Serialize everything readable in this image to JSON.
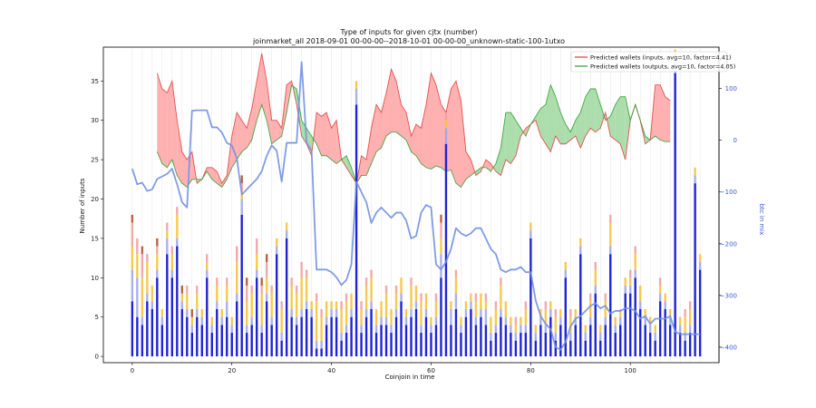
{
  "chart_data": {
    "type": "bar",
    "title": "Type of inputs for given cjtx (number)",
    "subtitle": "joinmarket_all 2018-09-01 00-00-00--2018-10-01 00-00-00_unknown-static-100-1utxo",
    "xlabel": "Coinjoin in time",
    "ylabel": "Number of inputs",
    "ylabel_right": "btc in mix",
    "xlim": [
      -5.8,
      117.8
    ],
    "ylim": [
      -0.8,
      39.3
    ],
    "ylim_right": [
      -430,
      180
    ],
    "xticks": [
      0,
      20,
      40,
      60,
      80,
      100
    ],
    "yticks": [
      0,
      5,
      10,
      15,
      20,
      25,
      30,
      35
    ],
    "yticks_right": [
      -400,
      -300,
      -200,
      -100,
      0,
      100
    ],
    "grid": "vertical lines only",
    "legend_position": "top-right",
    "colors": {
      "bar_base": "#1f24d6",
      "bar_light_blue": "#9aa2ee",
      "bar_yellow": "#f7c33b",
      "bar_pink": "#f2a0a0",
      "bar_brown": "#b5532e",
      "fill_inputs": "#ff9d9d",
      "fill_outputs": "#97d497",
      "line_inputs": "#e23a3a",
      "line_outputs": "#2b9b2b",
      "line_btc": "#7391e2",
      "grid": "#dddddd"
    },
    "bars": {
      "x": [
        0,
        1,
        2,
        3,
        4,
        5,
        6,
        7,
        8,
        9,
        10,
        11,
        12,
        13,
        14,
        15,
        16,
        17,
        18,
        19,
        20,
        21,
        22,
        23,
        24,
        25,
        26,
        27,
        28,
        29,
        30,
        31,
        32,
        33,
        34,
        35,
        36,
        37,
        38,
        39,
        40,
        41,
        42,
        43,
        44,
        45,
        46,
        47,
        48,
        49,
        50,
        51,
        52,
        53,
        54,
        55,
        56,
        57,
        58,
        59,
        60,
        61,
        62,
        63,
        64,
        65,
        66,
        67,
        68,
        69,
        70,
        71,
        72,
        73,
        74,
        75,
        76,
        77,
        78,
        79,
        80,
        81,
        82,
        83,
        84,
        85,
        86,
        87,
        88,
        89,
        90,
        91,
        92,
        93,
        94,
        95,
        96,
        97,
        98,
        99,
        100,
        101,
        102,
        103,
        104,
        105,
        106,
        107,
        108,
        109,
        110,
        111,
        112,
        113,
        114
      ],
      "base": [
        7,
        5,
        4,
        7,
        6,
        10,
        4,
        13,
        10,
        14,
        6,
        5,
        3,
        5,
        4,
        10,
        3,
        6,
        4,
        5,
        3,
        7,
        18,
        3,
        4,
        10,
        3,
        7,
        4,
        13,
        2,
        15,
        5,
        4,
        5,
        6,
        5,
        1,
        1,
        4,
        5,
        5,
        2,
        3,
        5,
        32,
        3,
        5,
        6,
        3,
        4,
        4,
        3,
        5,
        7,
        4,
        5,
        6,
        3,
        5,
        3,
        4,
        10,
        27,
        4,
        6,
        3,
        5,
        6,
        4,
        5,
        4,
        2,
        3,
        5,
        4,
        3,
        2,
        3,
        3,
        15,
        2,
        4,
        3,
        5,
        2,
        4,
        10,
        2,
        4,
        13,
        2,
        4,
        8,
        2,
        4,
        13,
        3,
        4,
        8,
        8,
        10,
        6,
        4,
        3,
        2,
        7,
        6,
        4,
        36,
        3,
        2,
        3,
        22,
        11
      ],
      "light_blue": [
        4,
        5,
        1,
        1,
        1,
        1,
        1,
        2,
        1,
        1,
        1,
        1,
        1,
        1,
        1,
        1,
        1,
        1,
        1,
        2,
        1,
        1,
        2,
        1,
        1,
        1,
        1,
        1,
        1,
        1,
        1,
        1,
        1,
        1,
        1,
        1,
        1,
        1,
        1,
        1,
        1,
        1,
        1,
        1,
        1,
        2,
        1,
        1,
        1,
        1,
        1,
        1,
        1,
        1,
        1,
        1,
        1,
        1,
        1,
        1,
        1,
        1,
        3,
        2,
        2,
        2,
        1,
        1,
        1,
        1,
        1,
        2,
        1,
        1,
        1,
        1,
        1,
        1,
        1,
        1,
        1,
        1,
        1,
        1,
        1,
        1,
        1,
        1,
        1,
        1,
        1,
        1,
        1,
        1,
        1,
        1,
        1,
        1,
        1,
        1,
        1,
        1,
        1,
        1,
        1,
        1,
        1,
        1,
        1,
        2,
        1,
        1,
        1,
        1,
        1
      ],
      "yellow": [
        3,
        3,
        5,
        4,
        2,
        2,
        1,
        1,
        2,
        3,
        1,
        2,
        1,
        2,
        1,
        1,
        1,
        2,
        1,
        2,
        1,
        4,
        1,
        3,
        3,
        2,
        4,
        2,
        3,
        1,
        3,
        1,
        3,
        3,
        4,
        3,
        1,
        5,
        3,
        2,
        1,
        1,
        3,
        3,
        2,
        1,
        2,
        3,
        3,
        2,
        2,
        3,
        2,
        2,
        2,
        1,
        3,
        2,
        3,
        2,
        1,
        2,
        2,
        1,
        1,
        2,
        1,
        1,
        1,
        2,
        2,
        1,
        2,
        2,
        3,
        2,
        1,
        1,
        1,
        2,
        1,
        1,
        1,
        2,
        1,
        2,
        1,
        1,
        2,
        1,
        1,
        1,
        2,
        2,
        1,
        2,
        3,
        1,
        1,
        1,
        1,
        2,
        2,
        1,
        1,
        1,
        1,
        1,
        1,
        1,
        1,
        2,
        2,
        1,
        1
      ],
      "pink": [
        3,
        2,
        3,
        1,
        0,
        1,
        0,
        1,
        1,
        1,
        0,
        1,
        0,
        1,
        0,
        1,
        0,
        1,
        0,
        1,
        0,
        2,
        1,
        2,
        1,
        2,
        1,
        2,
        1,
        0,
        1,
        0,
        1,
        1,
        2,
        1,
        0,
        1,
        1,
        0,
        0,
        0,
        1,
        1,
        0,
        0,
        1,
        1,
        1,
        0,
        0,
        1,
        0,
        1,
        0,
        0,
        1,
        0,
        1,
        0,
        0,
        1,
        2,
        1,
        0,
        1,
        0,
        0,
        0,
        1,
        0,
        1,
        0,
        1,
        1,
        0,
        0,
        1,
        0,
        1,
        0,
        0,
        0,
        1,
        0,
        1,
        0,
        0,
        1,
        0,
        0,
        0,
        1,
        1,
        0,
        1,
        1,
        0,
        0,
        0,
        1,
        1,
        0,
        0,
        0,
        0,
        1,
        0,
        0,
        0,
        0,
        1,
        1,
        0,
        0
      ],
      "brown": [
        1,
        0,
        1,
        0,
        0,
        1,
        0,
        0,
        0,
        0,
        1,
        0,
        1,
        0,
        0,
        0,
        0,
        0,
        0,
        0,
        0,
        0,
        1,
        1,
        0,
        0,
        1,
        1,
        0,
        0,
        0,
        0,
        0,
        0,
        0,
        0,
        0,
        0,
        0,
        0,
        0,
        0,
        0,
        0,
        0,
        0,
        0,
        0,
        0,
        0,
        0,
        0,
        0,
        0,
        0,
        0,
        0,
        0,
        0,
        0,
        0,
        0,
        1,
        0,
        0,
        0,
        0,
        0,
        0,
        0,
        0,
        0,
        0,
        0,
        0,
        0,
        0,
        0,
        0,
        0,
        0,
        0,
        0,
        0,
        0,
        0,
        0,
        0,
        0,
        0,
        0,
        0,
        0,
        0,
        0,
        0,
        0,
        0,
        0,
        0,
        0,
        0,
        0,
        0,
        0,
        0,
        0,
        0,
        0,
        0,
        0,
        0,
        0,
        0,
        0
      ]
    },
    "wallet_bands": {
      "x": [
        5,
        6,
        7,
        8,
        9,
        10,
        11,
        12,
        13,
        14,
        15,
        16,
        17,
        18,
        19,
        20,
        21,
        22,
        23,
        24,
        25,
        26,
        27,
        28,
        29,
        30,
        31,
        32,
        33,
        34,
        35,
        36,
        37,
        38,
        39,
        40,
        41,
        42,
        43,
        44,
        45,
        46,
        47,
        48,
        49,
        50,
        51,
        52,
        53,
        54,
        55,
        56,
        57,
        58,
        59,
        60,
        61,
        62,
        63,
        64,
        65,
        66,
        67,
        68,
        69,
        70,
        71,
        72,
        73,
        74,
        75,
        76,
        77,
        78,
        79,
        80,
        81,
        82,
        83,
        84,
        85,
        86,
        87,
        88,
        89,
        90,
        91,
        92,
        93,
        94,
        95,
        96,
        97,
        98,
        99,
        100,
        101,
        102,
        103,
        104,
        105,
        106,
        107,
        108
      ],
      "inputs": [
        36,
        34,
        33.5,
        35,
        30,
        26,
        25,
        26,
        22,
        22.5,
        24,
        24,
        23.5,
        22,
        23,
        28,
        31,
        30,
        29,
        31.5,
        35,
        38.5,
        35,
        30,
        30,
        29,
        34.5,
        35,
        32,
        28,
        27,
        25.5,
        31,
        30.5,
        31,
        29,
        30,
        25,
        24,
        23,
        22,
        25.5,
        25,
        29,
        32,
        31,
        33.5,
        36.5,
        35,
        32,
        31,
        28,
        29.5,
        29,
        32,
        36,
        34.5,
        32,
        31,
        34,
        35,
        32.5,
        26,
        25,
        23,
        23.5,
        25,
        24.5,
        23.5,
        23,
        25,
        24.5,
        25.5,
        28,
        29,
        29.5,
        30,
        28,
        27,
        26,
        28,
        27,
        27,
        27.5,
        28,
        26.5,
        28,
        29,
        28.5,
        29,
        31,
        28,
        27.5,
        27,
        25,
        30,
        32,
        30,
        27,
        27.5,
        34.5,
        34.5,
        33,
        32.5
      ],
      "outputs": [
        26,
        24.5,
        24,
        25,
        23,
        22,
        21.5,
        22.5,
        22.5,
        22.5,
        23.5,
        22.5,
        22,
        21.5,
        22.5,
        24,
        25,
        26,
        26.5,
        27.5,
        30,
        32,
        30,
        27,
        27.5,
        28,
        31,
        34.5,
        34,
        30,
        29,
        28,
        27,
        25.5,
        25.5,
        25,
        24.5,
        25,
        25.5,
        24,
        22,
        23,
        23,
        24.5,
        26,
        26.5,
        28,
        28.5,
        28.5,
        28,
        27.5,
        26,
        25.5,
        24.5,
        24,
        23.8,
        24.2,
        24,
        23.5,
        23.7,
        22,
        21.5,
        22.5,
        23,
        23.5,
        24,
        24,
        23.5,
        24.5,
        26.5,
        31,
        31,
        30,
        29,
        28,
        29.5,
        30.5,
        31.5,
        32,
        34.5,
        33,
        31,
        29.5,
        28.5,
        30,
        31,
        33,
        34,
        34,
        32,
        30,
        30.5,
        32,
        33,
        33,
        30,
        32,
        30,
        28,
        27.5,
        28,
        27.5,
        27.3,
        27.3
      ]
    },
    "btc_in_mix": {
      "x": [
        0,
        1,
        2,
        3,
        4,
        5,
        6,
        7,
        8,
        9,
        10,
        11,
        12,
        13,
        14,
        15,
        16,
        17,
        18,
        19,
        20,
        21,
        22,
        23,
        24,
        25,
        26,
        27,
        28,
        29,
        30,
        31,
        32,
        33,
        34,
        35,
        36,
        37,
        38,
        39,
        40,
        41,
        42,
        43,
        44,
        45,
        46,
        47,
        48,
        49,
        50,
        51,
        52,
        53,
        54,
        55,
        56,
        57,
        58,
        59,
        60,
        61,
        62,
        63,
        64,
        65,
        66,
        67,
        68,
        69,
        70,
        71,
        72,
        73,
        74,
        75,
        76,
        77,
        78,
        79,
        80,
        81,
        82,
        83,
        84,
        85,
        86,
        87,
        88,
        89,
        90,
        91,
        92,
        93,
        94,
        95,
        96,
        97,
        98,
        99,
        100,
        101,
        102,
        103,
        104,
        105,
        106,
        107,
        108,
        109,
        110,
        111,
        112,
        113,
        114
      ],
      "values": [
        -55,
        -85,
        -82,
        -98,
        -95,
        -75,
        -70,
        -65,
        -55,
        -85,
        -120,
        -130,
        57,
        58,
        58,
        58,
        25,
        25,
        15,
        -5,
        -10,
        -35,
        -105,
        -95,
        -85,
        -75,
        -60,
        -30,
        -10,
        -20,
        -80,
        -5,
        -5,
        -5,
        151,
        -5,
        -20,
        -250,
        -250,
        -250,
        -255,
        -265,
        -280,
        -270,
        -240,
        -80,
        -100,
        -120,
        -160,
        -140,
        -130,
        -140,
        -150,
        -140,
        -140,
        -155,
        -190,
        -185,
        -140,
        -125,
        -130,
        -240,
        -250,
        -235,
        -210,
        -170,
        -180,
        -185,
        -180,
        -170,
        -170,
        -190,
        -210,
        -220,
        -250,
        -255,
        -250,
        -250,
        -245,
        -255,
        -255,
        -310,
        -340,
        -355,
        -365,
        -400,
        -405,
        -390,
        -360,
        -345,
        -340,
        -330,
        -320,
        -315,
        -325,
        -320,
        -335,
        -330,
        -330,
        -325,
        -325,
        -330,
        -345,
        -340,
        -355,
        -345,
        -345,
        -345,
        -340,
        -370,
        -375,
        -375,
        -375,
        -375,
        -375
      ]
    },
    "series": [
      {
        "name": "Predicted wallets (inputs, avg=10, factor=4.41)"
      },
      {
        "name": "Predicted wallets (outputs, avg=10, factor=4.05)"
      }
    ]
  }
}
